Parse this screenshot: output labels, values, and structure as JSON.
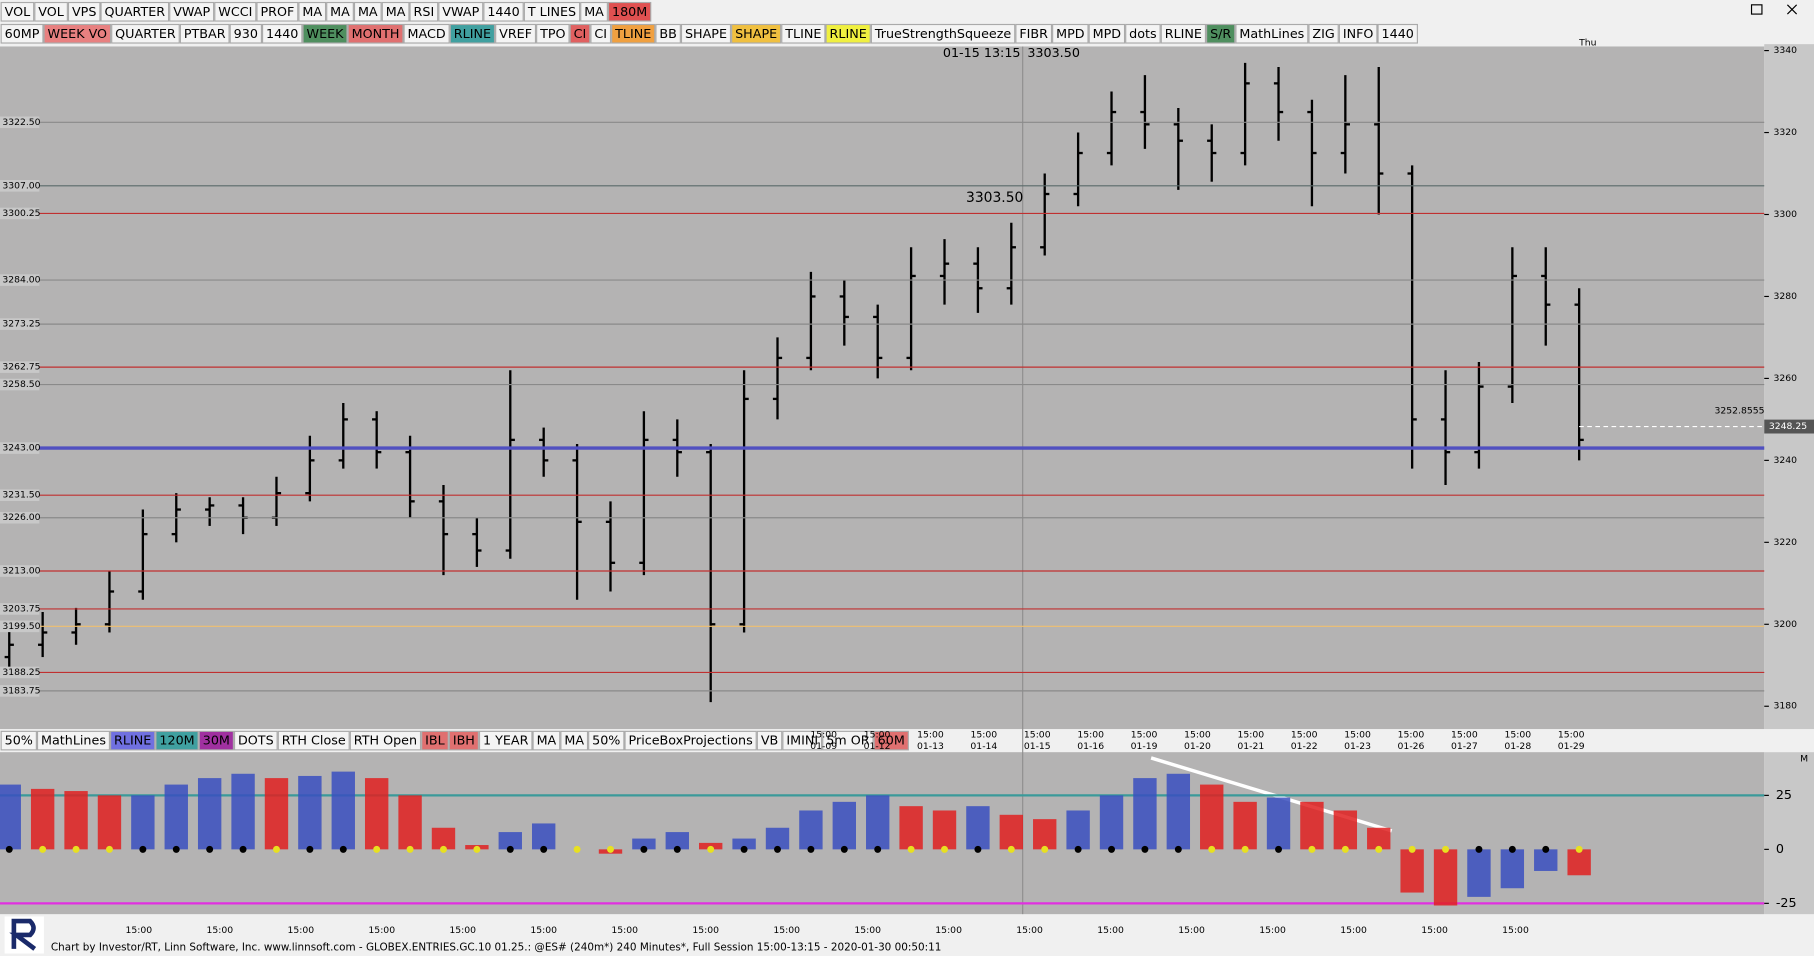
{
  "toolbars": [
    {
      "items": [
        {
          "label": "VOL"
        },
        {
          "label": "VOL"
        },
        {
          "label": "VPS"
        },
        {
          "label": "QUARTER"
        },
        {
          "label": "VWAP"
        },
        {
          "label": "WCCI"
        },
        {
          "label": "PROF"
        },
        {
          "label": "MA"
        },
        {
          "label": "MA"
        },
        {
          "label": "MA"
        },
        {
          "label": "MA"
        },
        {
          "label": "RSI"
        },
        {
          "label": "VWAP"
        },
        {
          "label": "1440"
        },
        {
          "label": "T LINES"
        },
        {
          "label": "MA"
        },
        {
          "label": "180M",
          "bg": "#e05050"
        }
      ]
    },
    {
      "items": [
        {
          "label": "60MP"
        },
        {
          "label": "WEEK VO",
          "bg": "#e88080"
        },
        {
          "label": "QUARTER"
        },
        {
          "label": "PTBAR"
        },
        {
          "label": "930"
        },
        {
          "label": "1440"
        },
        {
          "label": "WEEK",
          "bg": "#4f8f5f"
        },
        {
          "label": "MONTH",
          "bg": "#e07070"
        },
        {
          "label": "MACD"
        },
        {
          "label": "RLINE",
          "bg": "#40a0a0"
        },
        {
          "label": "VREF"
        },
        {
          "label": "TPO"
        },
        {
          "label": "CI",
          "bg": "#e06060"
        },
        {
          "label": "CI"
        },
        {
          "label": "TLINE",
          "bg": "#f0a040"
        },
        {
          "label": "BB"
        },
        {
          "label": "SHAPE"
        },
        {
          "label": "SHAPE",
          "bg": "#f0c040"
        },
        {
          "label": "TLINE"
        },
        {
          "label": "RLINE",
          "bg": "#f0f040"
        },
        {
          "label": "TrueStrengthSqueeze"
        },
        {
          "label": "FIBR"
        },
        {
          "label": "MPD"
        },
        {
          "label": "MPD"
        },
        {
          "label": "dots"
        },
        {
          "label": "RLINE"
        },
        {
          "label": "S/R",
          "bg": "#4f8f5f"
        },
        {
          "label": "MathLines"
        },
        {
          "label": "ZIG"
        },
        {
          "label": "INFO"
        },
        {
          "label": "1440"
        }
      ]
    },
    {
      "items": [
        {
          "label": "50%"
        },
        {
          "label": "MathLines"
        },
        {
          "label": "RLINE",
          "bg": "#7070e0"
        },
        {
          "label": "120M",
          "bg": "#40a0a0"
        },
        {
          "label": "30M",
          "bg": "#a030a0"
        },
        {
          "label": "DOTS"
        },
        {
          "label": "RTH Close"
        },
        {
          "label": "RTH Open"
        },
        {
          "label": "IBL",
          "bg": "#e07070"
        },
        {
          "label": "IBH",
          "bg": "#e07070"
        },
        {
          "label": "1 YEAR"
        },
        {
          "label": "MA"
        },
        {
          "label": "MA"
        },
        {
          "label": "50%"
        },
        {
          "label": "PriceBoxProjections"
        },
        {
          "label": "VB"
        },
        {
          "label": "IMINI"
        },
        {
          "label": "5m OR"
        },
        {
          "label": "60M",
          "bg": "#e07070"
        }
      ]
    }
  ],
  "chart_data": [
    {
      "type": "ohlc",
      "color": "#000000",
      "background": "#b4b3b3",
      "ylim": [
        3175,
        3341
      ],
      "yticks": [
        3340,
        3320,
        3300,
        3280,
        3260,
        3240,
        3220,
        3200,
        3180
      ],
      "ohlc": [
        [
          3192,
          3200,
          3188,
          3195
        ],
        [
          3195,
          3203,
          3192,
          3198
        ],
        [
          3198,
          3204,
          3195,
          3200
        ],
        [
          3200,
          3213,
          3198,
          3208
        ],
        [
          3208,
          3228,
          3206,
          3222
        ],
        [
          3222,
          3232,
          3220,
          3228
        ],
        [
          3228,
          3231,
          3224,
          3229
        ],
        [
          3229,
          3231,
          3222,
          3226
        ],
        [
          3226,
          3236,
          3224,
          3232
        ],
        [
          3232,
          3246,
          3230,
          3240
        ],
        [
          3240,
          3254,
          3238,
          3250
        ],
        [
          3250,
          3252,
          3238,
          3242
        ],
        [
          3242,
          3246,
          3226,
          3230
        ],
        [
          3230,
          3234,
          3212,
          3222
        ],
        [
          3222,
          3226,
          3214,
          3218
        ],
        [
          3218,
          3262,
          3216,
          3245
        ],
        [
          3245,
          3248,
          3236,
          3240
        ],
        [
          3240,
          3244,
          3206,
          3225
        ],
        [
          3225,
          3230,
          3208,
          3215
        ],
        [
          3215,
          3252,
          3212,
          3245
        ],
        [
          3245,
          3250,
          3236,
          3242
        ],
        [
          3242,
          3244,
          3181,
          3200
        ],
        [
          3200,
          3262,
          3198,
          3255
        ],
        [
          3255,
          3270,
          3250,
          3265
        ],
        [
          3265,
          3286,
          3262,
          3280
        ],
        [
          3280,
          3284,
          3268,
          3275
        ],
        [
          3275,
          3278,
          3260,
          3265
        ],
        [
          3265,
          3292,
          3262,
          3285
        ],
        [
          3285,
          3294,
          3278,
          3288
        ],
        [
          3288,
          3292,
          3276,
          3282
        ],
        [
          3282,
          3298,
          3278,
          3292
        ],
        [
          3292,
          3310,
          3290,
          3305
        ],
        [
          3305,
          3320,
          3302,
          3315
        ],
        [
          3315,
          3330,
          3312,
          3325
        ],
        [
          3325,
          3334,
          3316,
          3322
        ],
        [
          3322,
          3326,
          3306,
          3318
        ],
        [
          3318,
          3322,
          3308,
          3315
        ],
        [
          3315,
          3337,
          3312,
          3332
        ],
        [
          3332,
          3336,
          3318,
          3325
        ],
        [
          3325,
          3328,
          3302,
          3315
        ],
        [
          3315,
          3334,
          3310,
          3322
        ],
        [
          3322,
          3336,
          3300,
          3310
        ],
        [
          3310,
          3312,
          3238,
          3250
        ],
        [
          3250,
          3262,
          3234,
          3242
        ],
        [
          3242,
          3264,
          3238,
          3258
        ],
        [
          3258,
          3292,
          3254,
          3285
        ],
        [
          3285,
          3292,
          3268,
          3278
        ],
        [
          3278,
          3282,
          3240,
          3245
        ]
      ],
      "levels": [
        {
          "value": 3322.5,
          "label": "3322.50",
          "color": "#8a8a8a"
        },
        {
          "value": 3307,
          "label": "3307.00",
          "color": "#5a6a6a"
        },
        {
          "value": 3300.25,
          "label": "3300.25",
          "color": "#c03030"
        },
        {
          "value": 3284,
          "label": "3284.00",
          "color": "#8a8a8a"
        },
        {
          "value": 3273.25,
          "label": "3273.25",
          "color": "#8a8a8a"
        },
        {
          "value": 3262.75,
          "label": "3262.75",
          "color": "#c03030"
        },
        {
          "value": 3258.5,
          "label": "3258.50",
          "color": "#8a8a8a"
        },
        {
          "value": 3243,
          "label": "3243.00",
          "color": "#5050c0"
        },
        {
          "value": 3231.5,
          "label": "3231.50",
          "color": "#c03030"
        },
        {
          "value": 3226,
          "label": "3226.00",
          "color": "#8a8a8a"
        },
        {
          "value": 3213,
          "label": "3213.00",
          "color": "#c03030"
        },
        {
          "value": 3203.75,
          "label": "3203.75",
          "color": "#c03030"
        },
        {
          "value": 3199.5,
          "label": "3199.50",
          "color": "#f0c070"
        },
        {
          "value": 3188.25,
          "label": "3188.25",
          "color": "#c03030"
        },
        {
          "value": 3183.75,
          "label": "3183.75",
          "color": "#8a8a8a"
        }
      ],
      "last_price": {
        "value": 3248.25,
        "label": "3248.25"
      },
      "marker_text": "3252.8555",
      "cursor_label": "01-15 13:15",
      "cursor_price": "3303.50",
      "day_label": "Thu",
      "time_label": "15:00",
      "date_labels": [
        "01-09",
        "01-12",
        "01-13",
        "01-14",
        "01-15",
        "01-16",
        "01-19",
        "01-20",
        "01-21",
        "01-22",
        "01-23",
        "01-26",
        "01-27",
        "01-28",
        "01-29"
      ]
    },
    {
      "type": "bar",
      "colors": {
        "up": "#3a4fc0",
        "down": "#e02020"
      },
      "ylim": [
        -30,
        45
      ],
      "yticks": [
        25,
        0,
        -25
      ],
      "levels": [
        {
          "value": 25,
          "color": "#3a9a9a"
        },
        {
          "value": -25,
          "color": "#e030e0"
        }
      ],
      "values": [
        30,
        28,
        27,
        25,
        25,
        30,
        33,
        35,
        33,
        34,
        36,
        33,
        25,
        10,
        2,
        8,
        12,
        0,
        -2,
        5,
        8,
        3,
        5,
        10,
        18,
        22,
        25,
        20,
        18,
        20,
        16,
        14,
        18,
        25,
        33,
        35,
        30,
        22,
        24,
        22,
        18,
        10,
        -20,
        -26,
        -22,
        -18,
        -10,
        -12
      ],
      "corner_label": "M"
    }
  ],
  "footer": "Chart by Investor/RT, Linn Software, Inc. www.linnsoft.com - GLOBEX.ENTRIES.GC.10     01.25.: @ES# (240m*) 240 Minutes*, Full Session 15:00-13:15 - 2020-01-30 00:50:11"
}
